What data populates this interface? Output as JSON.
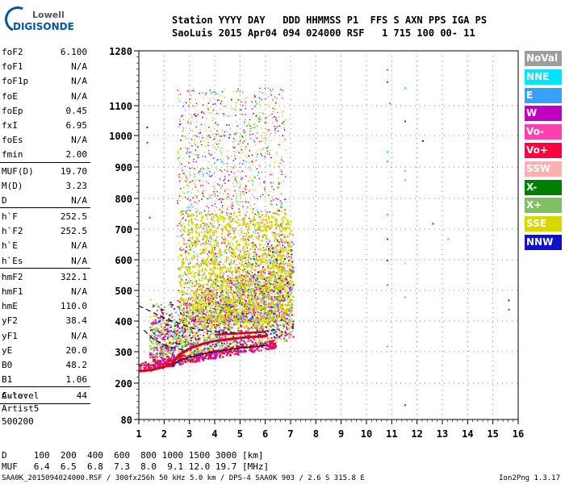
{
  "logo": {
    "line1": "Lowell",
    "line2": "DIGISONDE"
  },
  "header": {
    "line1": "Station YYYY DAY   DDD HHMMSS P1  FFS S AXN PPS IGA PS",
    "line2": "SaoLuis 2015 Apr04 094 024000 RSF   1 715 100 00- 11"
  },
  "params": [
    {
      "k": "foF2",
      "v": "6.100"
    },
    {
      "k": "foF1",
      "v": "N/A"
    },
    {
      "k": "foF1p",
      "v": "N/A"
    },
    {
      "k": "foE",
      "v": "N/A"
    },
    {
      "k": "foEp",
      "v": "0.45"
    },
    {
      "k": "fxI",
      "v": "6.95"
    },
    {
      "k": "foEs",
      "v": "N/A"
    },
    {
      "k": "fmin",
      "v": "2.00"
    },
    {
      "sep": true
    },
    {
      "k": "MUF(D)",
      "v": "19.70"
    },
    {
      "k": "M(D)",
      "v": "3.23"
    },
    {
      "k": "D",
      "v": "N/A"
    },
    {
      "sep": true
    },
    {
      "k": "h`F",
      "v": "252.5"
    },
    {
      "k": "h`F2",
      "v": "252.5"
    },
    {
      "k": "h`E",
      "v": "N/A"
    },
    {
      "k": "h`Es",
      "v": "N/A"
    },
    {
      "sep": true
    },
    {
      "k": "hmF2",
      "v": "322.1"
    },
    {
      "k": "hmF1",
      "v": "N/A"
    },
    {
      "k": "hmE",
      "v": "110.0"
    },
    {
      "k": "yF2",
      "v": "38.4"
    },
    {
      "k": "yF1",
      "v": "N/A"
    },
    {
      "k": "yE",
      "v": "20.0"
    },
    {
      "k": "B0",
      "v": "48.2"
    },
    {
      "k": "B1",
      "v": "1.06"
    },
    {
      "sep": true
    },
    {
      "k": "C-level",
      "v": "44"
    },
    {
      "sep": true
    }
  ],
  "auto": {
    "l1": "Auto:",
    "l2": "Artist5",
    "l3": "500200"
  },
  "legend": [
    {
      "label": "NoVal",
      "color": "#9e9e9e"
    },
    {
      "label": "NNE",
      "color": "#00e5ff"
    },
    {
      "label": "E",
      "color": "#3aa0ff"
    },
    {
      "label": "W",
      "color": "#c000c0"
    },
    {
      "label": "Vo-",
      "color": "#ff40b0"
    },
    {
      "label": "Vo+",
      "color": "#ff0040"
    },
    {
      "label": "SSW",
      "color": "#ffb0b0"
    },
    {
      "label": "X-",
      "color": "#008000"
    },
    {
      "label": "X+",
      "color": "#80c060"
    },
    {
      "label": "SSE",
      "color": "#d8d800"
    },
    {
      "label": "NNW",
      "color": "#1010d0"
    }
  ],
  "axes": {
    "y_ticks": [
      "1280",
      "1100",
      "1000",
      "900",
      "800",
      "700",
      "600",
      "500",
      "400",
      "300",
      "200",
      "80"
    ],
    "x_ticks": [
      "1",
      "2",
      "3",
      "4",
      "5",
      "6",
      "7",
      "8",
      "9",
      "10",
      "11",
      "12",
      "13",
      "14",
      "15",
      "16"
    ],
    "y_values": [
      1280,
      1100,
      1000,
      900,
      800,
      700,
      600,
      500,
      400,
      300,
      200,
      80
    ],
    "x_values": [
      1,
      2,
      3,
      4,
      5,
      6,
      7,
      8,
      9,
      10,
      11,
      12,
      13,
      14,
      15,
      16
    ]
  },
  "bottom": {
    "line1": "D     100  200  400  600  800 1000 1500 3000 [km]",
    "line2": "MUF   6.4  6.5  6.8  7.3  8.0  9.1 12.0 19.7 [MHz]"
  },
  "footer": "SAA0K_2015094024000.RSF / 300fx256h 50 kHz 5.0 km / DPS-4 SAA0K 903 / 2.6 S 315.8 E",
  "version": "Ion2Png 1.3.17"
}
